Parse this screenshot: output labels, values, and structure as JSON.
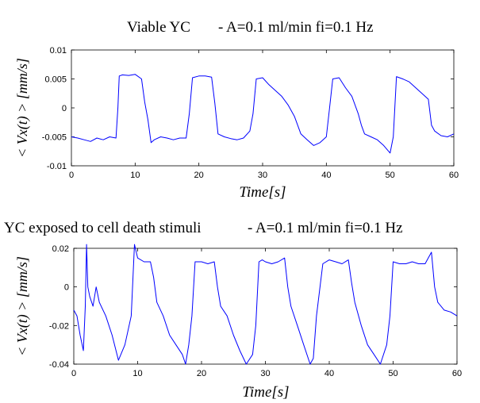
{
  "chart_data": [
    {
      "type": "line",
      "title_left": "Viable YC",
      "title_right": "- A=0.1 ml/min fi=0.1 Hz",
      "xlabel": "Time[s]",
      "ylabel": "< Vx(t) > [mm/s]",
      "xlim": [
        0,
        60
      ],
      "ylim": [
        -0.01,
        0.01
      ],
      "xticks": [
        "0",
        "10",
        "20",
        "30",
        "40",
        "50",
        "60"
      ],
      "yticks": [
        "-0.01",
        "-0.005",
        "0",
        "0.005",
        "0.01"
      ],
      "grid": false,
      "series": [
        {
          "color": "#0000ff",
          "x": [
            0,
            1,
            2,
            3,
            4,
            5,
            6,
            7,
            7.3,
            7.5,
            8,
            9,
            10,
            11,
            11.5,
            12,
            12.5,
            13,
            14,
            15,
            16,
            17,
            18,
            18.5,
            19,
            20,
            21,
            22,
            22.5,
            23,
            24,
            25,
            26,
            27,
            28,
            28.5,
            29,
            30,
            31,
            32,
            33,
            34,
            35,
            36,
            36.5,
            37,
            38,
            39,
            40,
            40.5,
            41,
            42,
            43,
            44,
            45,
            45.5,
            46,
            47,
            48,
            49,
            50,
            50.5,
            51,
            52,
            53,
            54,
            55,
            56,
            56.5,
            57,
            58,
            59,
            60
          ],
          "y": [
            -0.005,
            -0.0052,
            -0.0055,
            -0.0058,
            -0.0052,
            -0.0055,
            -0.005,
            -0.0052,
            0.0,
            0.0055,
            0.0057,
            0.0056,
            0.0058,
            0.005,
            0.001,
            -0.002,
            -0.006,
            -0.0055,
            -0.005,
            -0.0052,
            -0.0055,
            -0.0052,
            -0.0052,
            -0.001,
            0.0052,
            0.0055,
            0.0055,
            0.0053,
            0.0008,
            -0.0045,
            -0.005,
            -0.0053,
            -0.0055,
            -0.0052,
            -0.004,
            -0.001,
            0.005,
            0.0052,
            0.004,
            0.003,
            0.002,
            0.0005,
            -0.0015,
            -0.0045,
            -0.005,
            -0.0055,
            -0.0065,
            -0.006,
            -0.005,
            0.0,
            0.005,
            0.0052,
            0.0035,
            0.002,
            -0.001,
            -0.003,
            -0.0045,
            -0.005,
            -0.0055,
            -0.0065,
            -0.0078,
            -0.005,
            0.0054,
            0.005,
            0.0045,
            0.0035,
            0.0025,
            0.0015,
            -0.003,
            -0.004,
            -0.0048,
            -0.005,
            -0.0045
          ]
        }
      ]
    },
    {
      "type": "line",
      "title_left": "YC exposed to cell death stimuli",
      "title_right": "- A=0.1 ml/min fi=0.1 Hz",
      "xlabel": "Time[s]",
      "ylabel": "< Vx(t) > [mm/s]",
      "xlim": [
        0,
        60
      ],
      "ylim": [
        -0.04,
        0.02
      ],
      "xticks": [
        "0",
        "10",
        "20",
        "30",
        "40",
        "50",
        "60"
      ],
      "yticks": [
        "-0.04",
        "-0.02",
        "0",
        "0.02"
      ],
      "grid": false,
      "series": [
        {
          "color": "#0000ff",
          "x": [
            0,
            0.5,
            1,
            1.5,
            1.8,
            2,
            2.2,
            2.5,
            3,
            3.5,
            4,
            5,
            6,
            7,
            8,
            9,
            9.5,
            10,
            11,
            12,
            12.5,
            13,
            14,
            15,
            16,
            17,
            17.5,
            18,
            18.5,
            19,
            20,
            21,
            22,
            22.5,
            23,
            24,
            25,
            26,
            27,
            28,
            28.5,
            29,
            29.5,
            30,
            31,
            32,
            33,
            33.5,
            34,
            35,
            36,
            37,
            37.5,
            38,
            39,
            40,
            41,
            42,
            43,
            43.5,
            44,
            45,
            46,
            47,
            48,
            49,
            49.5,
            50,
            51,
            52,
            53,
            54,
            55,
            56,
            56.5,
            57,
            58,
            59,
            60
          ],
          "y": [
            -0.012,
            -0.015,
            -0.025,
            -0.033,
            -0.01,
            0.022,
            0.0,
            -0.005,
            -0.01,
            0.0,
            -0.008,
            -0.015,
            -0.025,
            -0.038,
            -0.03,
            -0.015,
            0.022,
            0.015,
            0.013,
            0.013,
            0.005,
            -0.008,
            -0.015,
            -0.025,
            -0.03,
            -0.035,
            -0.04,
            -0.03,
            -0.015,
            0.013,
            0.013,
            0.012,
            0.013,
            0.0,
            -0.01,
            -0.015,
            -0.025,
            -0.033,
            -0.04,
            -0.035,
            -0.02,
            0.013,
            0.014,
            0.013,
            0.012,
            0.013,
            0.015,
            0.0,
            -0.01,
            -0.02,
            -0.03,
            -0.04,
            -0.037,
            -0.015,
            0.012,
            0.014,
            0.013,
            0.012,
            0.014,
            0.002,
            -0.008,
            -0.02,
            -0.03,
            -0.035,
            -0.04,
            -0.03,
            -0.015,
            0.013,
            0.012,
            0.012,
            0.013,
            0.012,
            0.012,
            0.018,
            0.0,
            -0.008,
            -0.012,
            -0.013,
            -0.015
          ]
        }
      ]
    }
  ]
}
